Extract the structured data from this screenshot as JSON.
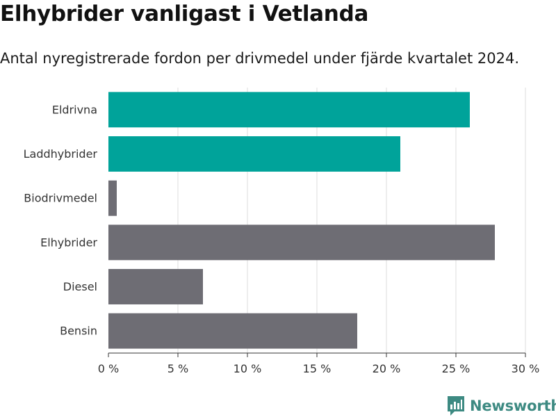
{
  "title": "Elhybrider vanligast i Vetlanda",
  "subtitle": "Antal nyregistrerade fordon per drivmedel under fjärde kvartalet 2024.",
  "brand": {
    "name": "Newsworthy",
    "icon": "newsworthy-logo-icon",
    "color": "#3d8a82"
  },
  "colors": {
    "highlight": "#00a39a",
    "default": "#6e6d74",
    "grid": "#dcdcdc",
    "axis": "#333333"
  },
  "chart_data": {
    "type": "bar",
    "orientation": "horizontal",
    "title": "Elhybrider vanligast i Vetlanda",
    "subtitle": "Antal nyregistrerade fordon per drivmedel under fjärde kvartalet 2024.",
    "categories": [
      "Eldrivna",
      "Laddhybrider",
      "Biodrivmedel",
      "Elhybrider",
      "Diesel",
      "Bensin"
    ],
    "values": [
      26.0,
      21.0,
      0.6,
      27.8,
      6.8,
      17.9
    ],
    "highlighted": [
      true,
      true,
      false,
      false,
      false,
      false
    ],
    "xlim": [
      0,
      30
    ],
    "xticks": [
      0,
      5,
      10,
      15,
      20,
      25,
      30
    ],
    "tick_labels": [
      "0 %",
      "5 %",
      "10 %",
      "15 %",
      "20 %",
      "25 %",
      "30 %"
    ],
    "xlabel": "",
    "ylabel": "",
    "grid": true
  }
}
